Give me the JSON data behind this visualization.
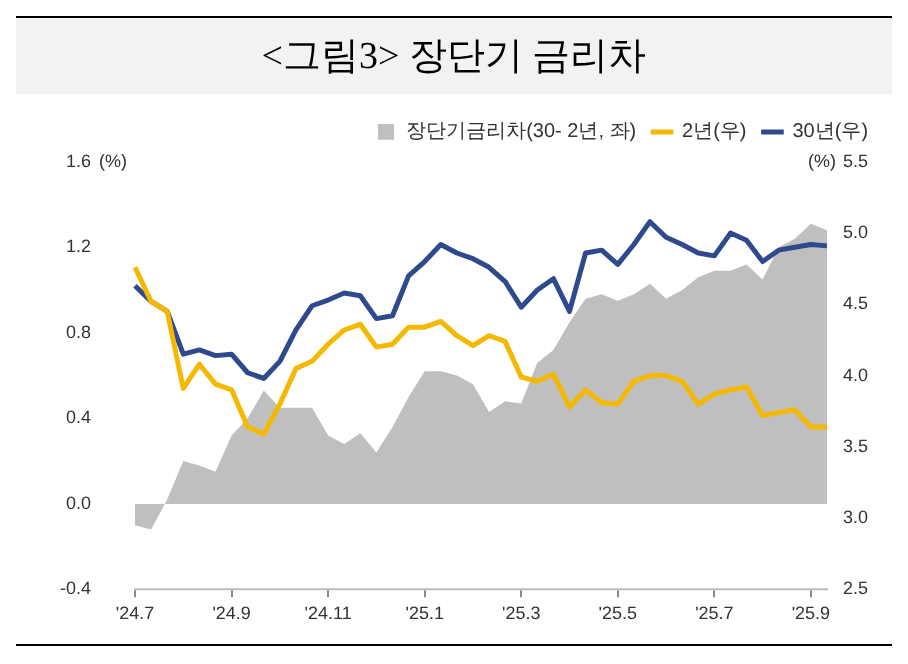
{
  "chart_data": {
    "type": "line",
    "title": "<그림3> 장단기 금리차",
    "ylabel": "(%)",
    "y2label": "(%)",
    "categories": [
      "'24.7",
      null,
      null,
      null,
      null,
      null,
      "'24.9",
      null,
      null,
      null,
      null,
      null,
      "'24.11",
      null,
      null,
      null,
      null,
      null,
      "'25.1",
      null,
      null,
      null,
      null,
      null,
      "'25.3",
      null,
      null,
      null,
      null,
      null,
      "'25.5",
      null,
      null,
      null,
      null,
      null,
      "'25.7",
      null,
      null,
      null,
      null,
      null,
      "'25.9",
      null
    ],
    "series": [
      {
        "name": "장단기금리차(30- 2년, 좌)",
        "type": "area",
        "color": "#bfbfbf",
        "values": [
          -0.1,
          -0.12,
          0.02,
          0.2,
          0.18,
          0.15,
          0.32,
          0.4,
          0.53,
          0.45,
          0.45,
          0.45,
          0.32,
          0.28,
          0.33,
          0.24,
          0.36,
          0.5,
          0.62,
          0.62,
          0.6,
          0.56,
          0.43,
          0.48,
          0.47,
          0.66,
          0.72,
          0.85,
          0.96,
          0.98,
          0.95,
          0.98,
          1.03,
          0.96,
          1.0,
          1.06,
          1.09,
          1.09,
          1.12,
          1.05,
          1.2,
          1.24,
          1.31,
          1.28
        ]
      },
      {
        "name": "2년(우)",
        "type": "line",
        "axis": "y2",
        "color": "#f5b800",
        "values": [
          4.76,
          4.52,
          4.45,
          3.91,
          4.08,
          3.94,
          3.9,
          3.64,
          3.59,
          3.8,
          4.05,
          4.1,
          4.22,
          4.32,
          4.36,
          4.2,
          4.22,
          4.34,
          4.34,
          4.38,
          4.28,
          4.21,
          4.28,
          4.24,
          3.99,
          3.96,
          4.01,
          3.78,
          3.9,
          3.81,
          3.8,
          3.96,
          4.0,
          4.0,
          3.96,
          3.8,
          3.87,
          3.9,
          3.92,
          3.72,
          3.74,
          3.76,
          3.64,
          3.64
        ]
      },
      {
        "name": "30년(우)",
        "type": "line",
        "axis": "y2",
        "color": "#2e4a8c",
        "values": [
          4.63,
          4.52,
          4.45,
          4.15,
          4.18,
          4.14,
          4.15,
          4.02,
          3.98,
          4.1,
          4.32,
          4.49,
          4.53,
          4.58,
          4.56,
          4.4,
          4.42,
          4.7,
          4.8,
          4.92,
          4.86,
          4.82,
          4.76,
          4.66,
          4.48,
          4.6,
          4.68,
          4.45,
          4.86,
          4.88,
          4.78,
          4.92,
          5.08,
          4.97,
          4.92,
          4.86,
          4.84,
          5.0,
          4.95,
          4.8,
          4.88,
          4.9,
          4.92,
          4.91
        ]
      }
    ],
    "ylim": [
      -0.4,
      1.6
    ],
    "yticks": [
      -0.4,
      {
        "value": 0,
        "label": "0.0"
      },
      0.4,
      0.8,
      1.2,
      1.6
    ],
    "y2lim": [
      2.5,
      5.5
    ],
    "y2ticks": [
      2.5,
      {
        "value": 3,
        "label": "3.0"
      },
      3.5,
      {
        "value": 4,
        "label": "4.0"
      },
      4.5,
      {
        "value": 5,
        "label": "5.0"
      },
      5.5
    ],
    "grid": false,
    "legend": "top",
    "marker": "none",
    "line_style": "solid"
  }
}
